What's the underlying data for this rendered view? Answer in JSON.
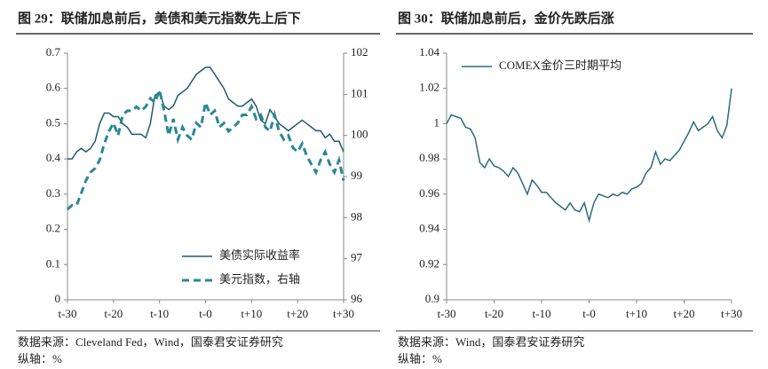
{
  "chart_data": [
    {
      "type": "line",
      "title": "图 29：联储加息前后，美债和美元指数先上后下",
      "categories": [
        "t-30",
        null,
        null,
        null,
        null,
        null,
        null,
        null,
        null,
        null,
        "t-20",
        null,
        null,
        null,
        null,
        null,
        null,
        null,
        null,
        null,
        "t-10",
        null,
        null,
        null,
        null,
        null,
        null,
        null,
        null,
        null,
        "t-0",
        null,
        null,
        null,
        null,
        null,
        null,
        null,
        null,
        null,
        "t+10",
        null,
        null,
        null,
        null,
        null,
        null,
        null,
        null,
        null,
        "t+20",
        null,
        null,
        null,
        null,
        null,
        null,
        null,
        null,
        null,
        "t+30"
      ],
      "series": [
        {
          "name": "美债实际收益率",
          "color": "#1f5a6a",
          "values": [
            0.4,
            0.4,
            0.42,
            0.43,
            0.42,
            0.43,
            0.45,
            0.5,
            0.53,
            0.53,
            0.52,
            0.52,
            0.5,
            0.49,
            0.47,
            0.47,
            0.47,
            0.46,
            0.5,
            0.58,
            0.59,
            0.55,
            0.54,
            0.55,
            0.58,
            0.59,
            0.6,
            0.62,
            0.64,
            0.65,
            0.66,
            0.66,
            0.64,
            0.62,
            0.6,
            0.57,
            0.56,
            0.55,
            0.55,
            0.56,
            0.57,
            0.55,
            0.51,
            0.5,
            0.54,
            0.52,
            0.5,
            0.49,
            0.48,
            0.49,
            0.5,
            0.51,
            0.5,
            0.49,
            0.48,
            0.48,
            0.46,
            0.47,
            0.45,
            0.45,
            0.42
          ]
        },
        {
          "name": "美元指数，右轴",
          "color": "#2a8795",
          "dashed": true,
          "axis": "y2",
          "values": [
            98.2,
            98.3,
            98.3,
            98.6,
            98.9,
            99.1,
            99.2,
            99.4,
            99.8,
            100.1,
            100.3,
            100.0,
            100.5,
            100.6,
            100.6,
            100.7,
            100.6,
            100.7,
            100.9,
            100.8,
            101.1,
            100.6,
            100.0,
            100.4,
            99.9,
            100.2,
            100.0,
            99.9,
            100.3,
            100.2,
            100.8,
            100.5,
            100.6,
            100.2,
            100.3,
            100.1,
            100.2,
            100.3,
            100.5,
            100.5,
            100.7,
            100.4,
            100.5,
            100.2,
            100.1,
            100.5,
            100.1,
            99.9,
            100.0,
            99.7,
            99.6,
            99.8,
            99.5,
            99.3,
            99.1,
            99.4,
            99.6,
            99.3,
            99.1,
            99.4,
            98.9
          ]
        }
      ],
      "ylim": [
        0,
        0.7
      ],
      "yticks": [
        0,
        0.1,
        0.2,
        0.3,
        0.4,
        0.5,
        0.6,
        0.7
      ],
      "y2lim": [
        96,
        102
      ],
      "y2ticks": [
        96,
        97,
        98,
        99,
        100,
        101,
        102
      ],
      "legend": "lower right",
      "source": "数据来源：Cleveland Fed，Wind，国泰君安证券研究",
      "note": "纵轴：%"
    },
    {
      "type": "line",
      "title": "图 30：联储加息前后，金价先跌后涨",
      "categories": [
        "t-30",
        null,
        null,
        null,
        null,
        null,
        null,
        null,
        null,
        null,
        "t-20",
        null,
        null,
        null,
        null,
        null,
        null,
        null,
        null,
        null,
        "t-10",
        null,
        null,
        null,
        null,
        null,
        null,
        null,
        null,
        null,
        "t-0",
        null,
        null,
        null,
        null,
        null,
        null,
        null,
        null,
        null,
        "t+10",
        null,
        null,
        null,
        null,
        null,
        null,
        null,
        null,
        null,
        "t+20",
        null,
        null,
        null,
        null,
        null,
        null,
        null,
        null,
        null,
        "t+30"
      ],
      "series": [
        {
          "name": "COMEX金价三时期平均",
          "color": "#2a6b7c",
          "values": [
            1.0,
            1.005,
            1.004,
            1.003,
            0.998,
            0.997,
            0.992,
            0.978,
            0.975,
            0.98,
            0.976,
            0.975,
            0.973,
            0.97,
            0.975,
            0.972,
            0.966,
            0.96,
            0.968,
            0.965,
            0.961,
            0.961,
            0.958,
            0.955,
            0.953,
            0.951,
            0.955,
            0.951,
            0.95,
            0.955,
            0.945,
            0.955,
            0.96,
            0.959,
            0.958,
            0.96,
            0.959,
            0.961,
            0.96,
            0.963,
            0.964,
            0.966,
            0.972,
            0.975,
            0.984,
            0.977,
            0.98,
            0.979,
            0.982,
            0.985,
            0.99,
            0.995,
            1.001,
            0.996,
            0.998,
            1.0,
            1.004,
            0.996,
            0.992,
            0.999,
            1.02
          ]
        }
      ],
      "ylim": [
        0.9,
        1.04
      ],
      "yticks": [
        0.9,
        0.92,
        0.94,
        0.96,
        0.98,
        1,
        1.02,
        1.04
      ],
      "legend": "upper left",
      "source": "数据来源：Wind，国泰君安证券研究",
      "note": "纵轴：%"
    }
  ]
}
